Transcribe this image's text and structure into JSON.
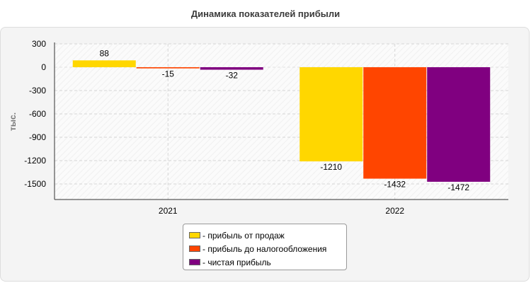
{
  "chart_data": {
    "type": "bar",
    "title": "Динамика показателей прибыли",
    "ylabel": "тыс.",
    "xlabel": "",
    "categories": [
      "2021",
      "2022"
    ],
    "ylim": [
      -1700,
      300
    ],
    "yticks": [
      300,
      0,
      -300,
      -600,
      -900,
      -1200,
      -1500
    ],
    "grid": true,
    "legend_position": "bottom",
    "series": [
      {
        "name": "прибыль от продаж",
        "color": "#FFD700",
        "values": [
          88,
          -1210
        ]
      },
      {
        "name": "прибыль до налогообложения",
        "color": "#FF4500",
        "values": [
          -15,
          -1432
        ]
      },
      {
        "name": "чистая прибыль",
        "color": "#800080",
        "values": [
          -32,
          -1472
        ]
      }
    ]
  },
  "legend": {
    "items": [
      {
        "label": "- прибыль от продаж",
        "color": "#FFD700"
      },
      {
        "label": "- прибыль до налогообложения",
        "color": "#FF4500"
      },
      {
        "label": "- чистая прибыль",
        "color": "#800080"
      }
    ]
  }
}
